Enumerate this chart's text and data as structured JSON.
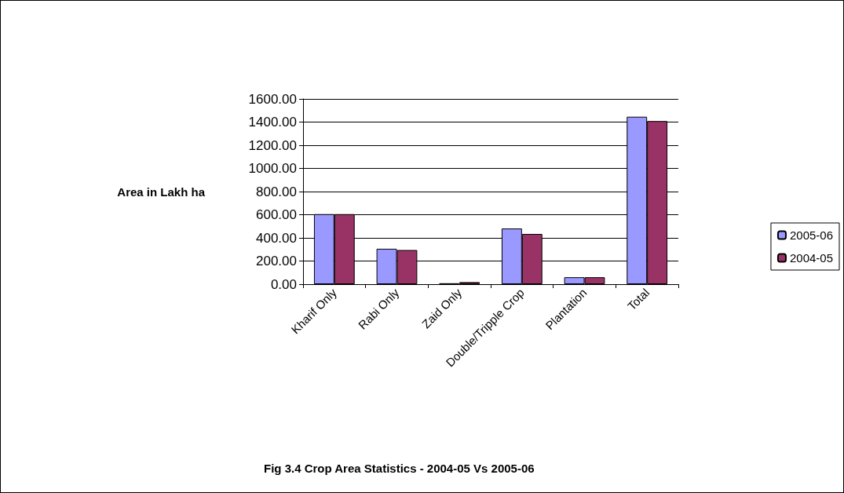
{
  "chart_data": {
    "type": "bar",
    "title": "Fig 3.4 Crop Area Statistics - 2004-05 Vs 2005-06",
    "ylabel": "Area in Lakh ha",
    "categories": [
      "Kharif Only",
      "Rabi Only",
      "Zaid Only",
      "Double/Tripple Crop",
      "Plantation",
      "Total"
    ],
    "series": [
      {
        "name": "2005-06",
        "color": "#9999ff",
        "values": [
          605,
          306,
          8,
          481,
          60,
          1446
        ]
      },
      {
        "name": "2004-05",
        "color": "#993366",
        "values": [
          605,
          295,
          18,
          434,
          60,
          1409
        ]
      }
    ],
    "ylim": [
      0,
      1600
    ],
    "yticks": [
      {
        "value": 0,
        "label": "0.00"
      },
      {
        "value": 200,
        "label": "200.00"
      },
      {
        "value": 400,
        "label": "400.00"
      },
      {
        "value": 600,
        "label": "600.00"
      },
      {
        "value": 800,
        "label": "800.00"
      },
      {
        "value": 1000,
        "label": "1000.00"
      },
      {
        "value": 1200,
        "label": "1200.00"
      },
      {
        "value": 1400,
        "label": "1400.00"
      },
      {
        "value": 1600,
        "label": "1600.00"
      }
    ],
    "grid": "y",
    "legend": "right"
  }
}
